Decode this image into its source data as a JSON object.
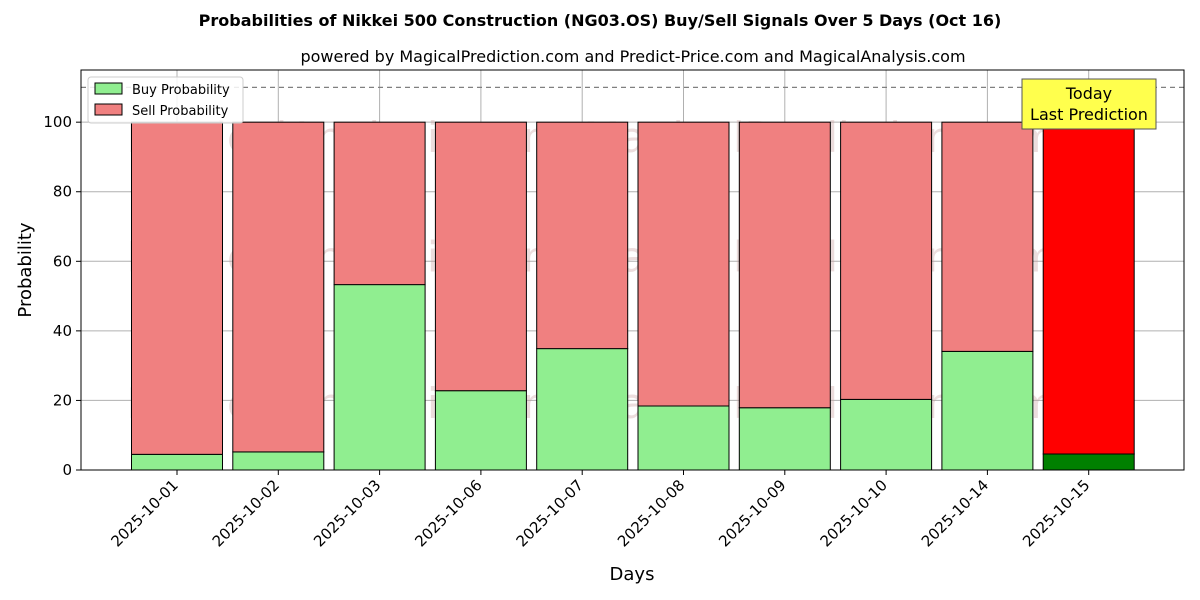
{
  "chart_data": {
    "type": "bar",
    "stacked": true,
    "title": "Probabilities of Nikkei 500 Construction (NG03.OS) Buy/Sell Signals Over 5 Days (Oct 16)",
    "subtitle": "powered by MagicalPrediction.com and Predict-Price.com and MagicalAnalysis.com",
    "xlabel": "Days",
    "ylabel": "Probability",
    "ylim": [
      0,
      115
    ],
    "yticks": [
      0,
      20,
      40,
      60,
      80,
      100
    ],
    "grid": true,
    "legend_position": "top-left",
    "reference_line": 110,
    "categories": [
      "2025-10-01",
      "2025-10-02",
      "2025-10-03",
      "2025-10-06",
      "2025-10-07",
      "2025-10-08",
      "2025-10-09",
      "2025-10-10",
      "2025-10-14",
      "2025-10-15"
    ],
    "series": [
      {
        "name": "Buy Probability",
        "values": [
          4.5,
          5.2,
          53.3,
          22.8,
          34.9,
          18.4,
          17.9,
          20.3,
          34.1,
          4.6
        ]
      },
      {
        "name": "Sell Probability",
        "values": [
          95.5,
          94.8,
          46.7,
          77.2,
          65.1,
          81.6,
          82.1,
          79.7,
          65.9,
          95.4
        ]
      }
    ],
    "colors": {
      "buy": "#90ee90",
      "sell": "#f08080",
      "buy_today": "#008000",
      "sell_today": "#ff0000",
      "annotation_bg": "#ffff4d"
    },
    "annotation": {
      "lines": [
        "Today",
        "Last Prediction"
      ]
    },
    "watermarks": [
      "MagicalAnalysis.com",
      "MagicalPrediction.com"
    ]
  }
}
